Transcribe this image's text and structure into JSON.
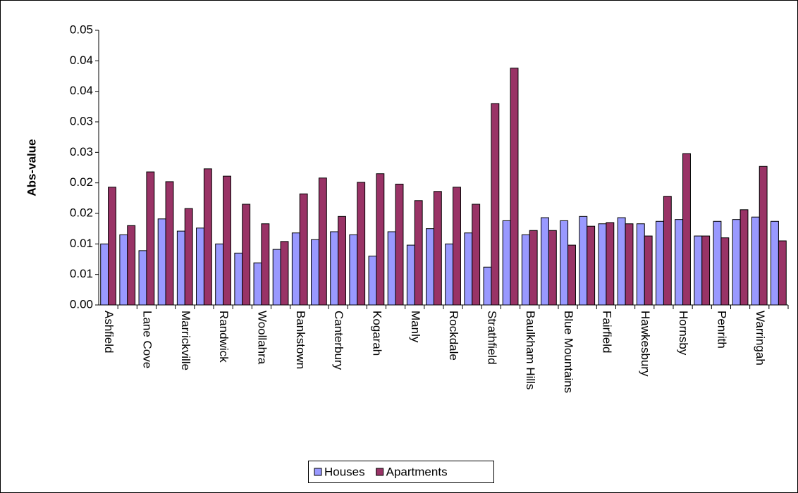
{
  "chart_data": {
    "type": "bar",
    "y_label": "Abs-value",
    "categories": [
      "Ashfield",
      null,
      "Lane Cove",
      null,
      "Marrickville",
      null,
      "Randwick",
      null,
      "Woollahra",
      null,
      "Bankstown",
      null,
      "Canterbury",
      null,
      "Kogarah",
      null,
      "Manly",
      null,
      "Rockdale",
      null,
      "Strathfield",
      null,
      "Baulkham Hills",
      null,
      "Blue Mountains",
      null,
      "Fairfield",
      null,
      "Hawkesbury",
      null,
      "Hornsby",
      null,
      "Penrith",
      null,
      "Warringah",
      null
    ],
    "series": [
      {
        "name": "Houses",
        "color": "#9999ff",
        "values": [
          0.01,
          0.0115,
          0.0089,
          0.0141,
          0.0121,
          0.0126,
          0.01,
          0.0085,
          0.0069,
          0.0091,
          0.0118,
          0.0107,
          0.012,
          0.0115,
          0.008,
          0.012,
          0.0098,
          0.0125,
          0.01,
          0.0118,
          0.0062,
          0.0138,
          0.0115,
          0.0143,
          0.0138,
          0.0145,
          0.0133,
          0.0143,
          0.0133,
          0.0137,
          0.014,
          0.0113,
          0.0137,
          0.014,
          0.0144,
          0.0137
        ]
      },
      {
        "name": "Apartments",
        "color": "#993366",
        "values": [
          0.0193,
          0.013,
          0.0218,
          0.0202,
          0.0158,
          0.0223,
          0.0211,
          0.0165,
          0.0133,
          0.0104,
          0.0182,
          0.0208,
          0.0145,
          0.0201,
          0.0215,
          0.0198,
          0.0171,
          0.0186,
          0.0193,
          0.0165,
          0.033,
          0.0388,
          0.0122,
          0.0122,
          0.0098,
          0.0129,
          0.0135,
          0.0133,
          0.0113,
          0.0178,
          0.0248,
          0.0113,
          0.011,
          0.0156,
          0.0227,
          0.0105
        ]
      }
    ],
    "ylim": [
      0,
      0.045
    ],
    "yticks": [
      {
        "value": 0,
        "label": "0.00"
      },
      {
        "value": 0.005,
        "label": "0.01"
      },
      {
        "value": 0.01,
        "label": "0.01"
      },
      {
        "value": 0.015,
        "label": "0.02"
      },
      {
        "value": 0.02,
        "label": "0.02"
      },
      {
        "value": 0.025,
        "label": "0.03"
      },
      {
        "value": 0.03,
        "label": "0.03"
      },
      {
        "value": 0.035,
        "label": "0.04"
      },
      {
        "value": 0.04,
        "label": "0.04"
      },
      {
        "value": 0.045,
        "label": "0.05"
      }
    ],
    "grid": false,
    "legend": "bottom"
  }
}
